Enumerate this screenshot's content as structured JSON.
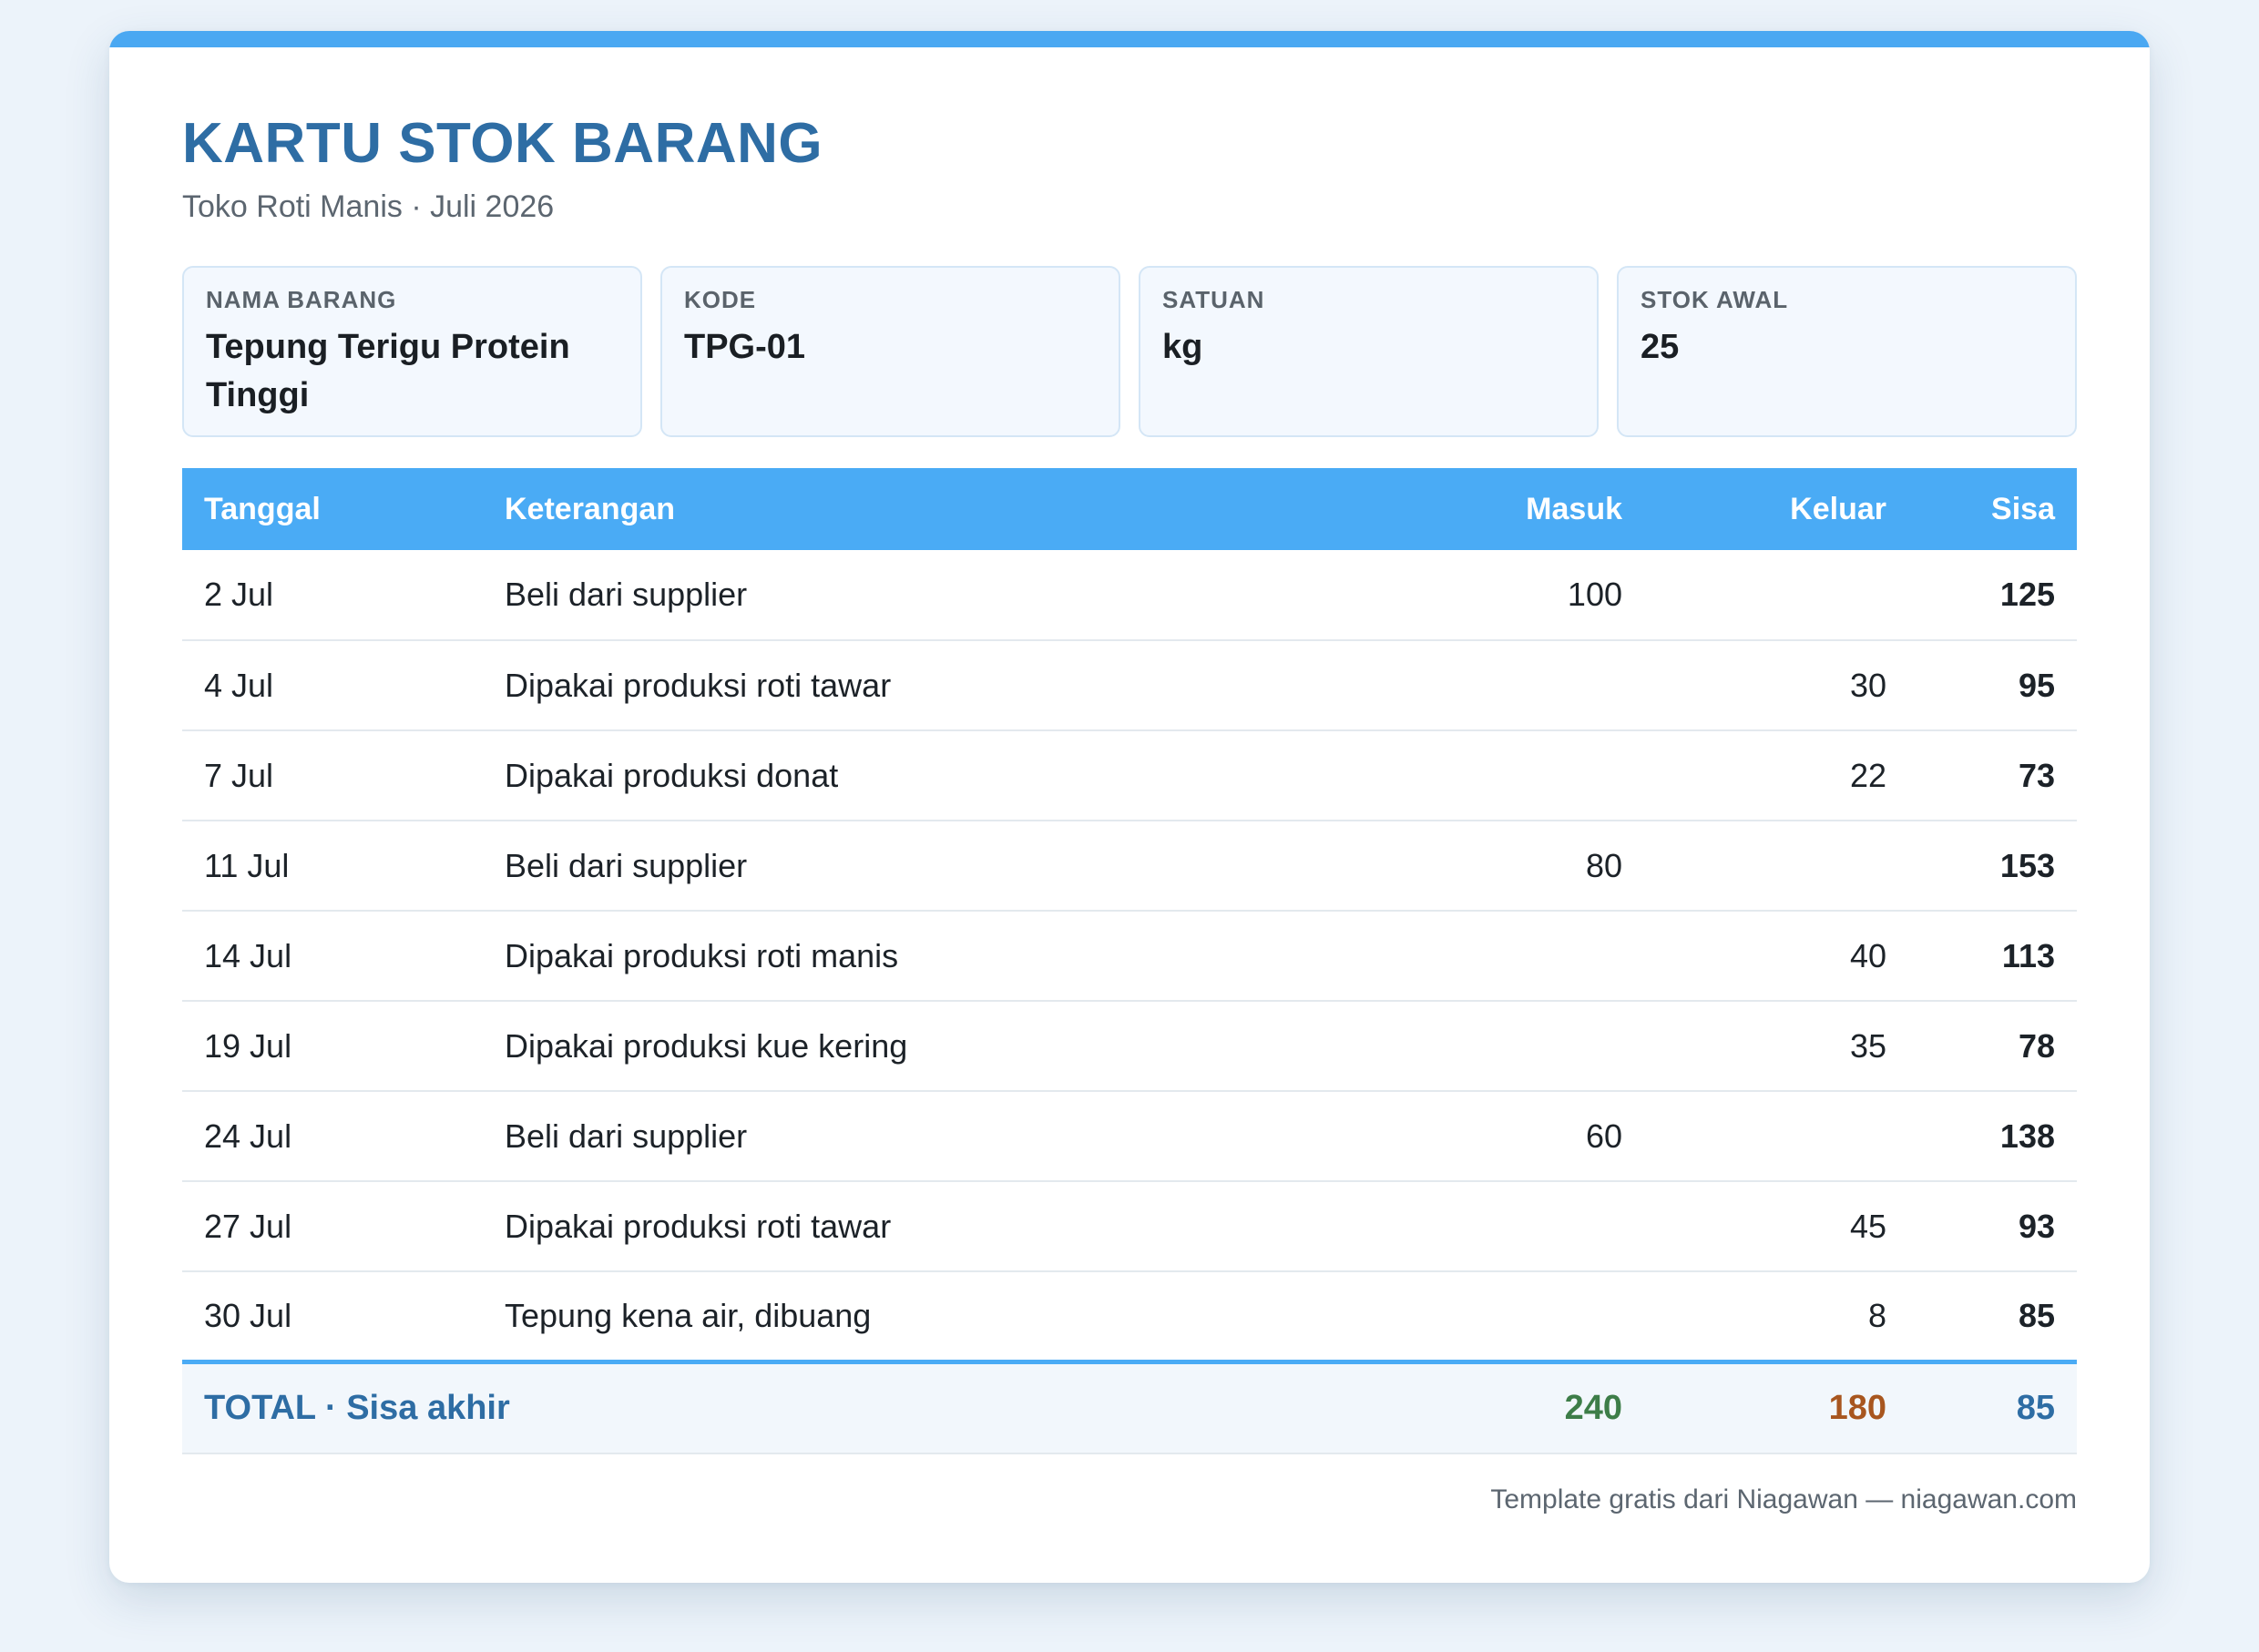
{
  "document": {
    "title": "KARTU STOK BARANG",
    "subtitle": "Toko Roti Manis · Juli 2026"
  },
  "info": [
    {
      "label": "Nama Barang",
      "value": "Tepung Terigu Protein Tinggi"
    },
    {
      "label": "Kode",
      "value": "TPG-01"
    },
    {
      "label": "Satuan",
      "value": "kg"
    },
    {
      "label": "Stok Awal",
      "value": "25"
    }
  ],
  "table": {
    "headers": {
      "date": "Tanggal",
      "desc": "Keterangan",
      "in": "Masuk",
      "out": "Keluar",
      "balance": "Sisa"
    },
    "rows": [
      {
        "date": "2 Jul",
        "desc": "Beli dari supplier",
        "in": "100",
        "out": "",
        "balance": "125"
      },
      {
        "date": "4 Jul",
        "desc": "Dipakai produksi roti tawar",
        "in": "",
        "out": "30",
        "balance": "95"
      },
      {
        "date": "7 Jul",
        "desc": "Dipakai produksi donat",
        "in": "",
        "out": "22",
        "balance": "73"
      },
      {
        "date": "11 Jul",
        "desc": "Beli dari supplier",
        "in": "80",
        "out": "",
        "balance": "153"
      },
      {
        "date": "14 Jul",
        "desc": "Dipakai produksi roti manis",
        "in": "",
        "out": "40",
        "balance": "113"
      },
      {
        "date": "19 Jul",
        "desc": "Dipakai produksi kue kering",
        "in": "",
        "out": "35",
        "balance": "78"
      },
      {
        "date": "24 Jul",
        "desc": "Beli dari supplier",
        "in": "60",
        "out": "",
        "balance": "138"
      },
      {
        "date": "27 Jul",
        "desc": "Dipakai produksi roti tawar",
        "in": "",
        "out": "45",
        "balance": "93"
      },
      {
        "date": "30 Jul",
        "desc": "Tepung kena air, dibuang",
        "in": "",
        "out": "8",
        "balance": "85"
      }
    ],
    "total": {
      "label": "TOTAL · Sisa akhir",
      "in": "240",
      "out": "180",
      "balance": "85"
    }
  },
  "footer": {
    "text": "Template gratis dari Niagawan — niagawan.com"
  },
  "colors": {
    "accent": "#4aabf5",
    "title": "#2e6da4",
    "in": "#3d7d48",
    "out": "#b0602a",
    "balance": "#2e6da4"
  }
}
